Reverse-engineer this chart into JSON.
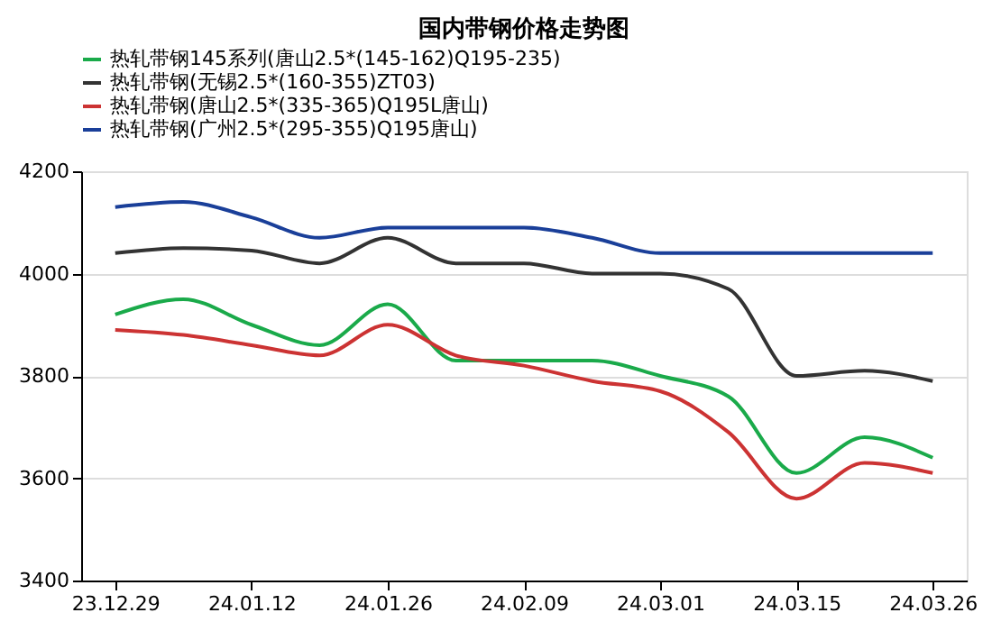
{
  "chart_data": {
    "type": "line",
    "title": "国内带钢价格走势图",
    "categories": [
      "23.12.29",
      null,
      "24.01.12",
      null,
      "24.01.26",
      null,
      "24.02.09",
      null,
      "24.03.01",
      null,
      "24.03.15",
      null,
      "24.03.26"
    ],
    "series": [
      {
        "name": "热轧带钢145系列(唐山2.5*(145-162)Q195-235)",
        "color": "#1aaa4a",
        "values": [
          3920,
          3950,
          3900,
          3860,
          3940,
          3830,
          3830,
          3830,
          3800,
          3760,
          3610,
          3680,
          3640
        ]
      },
      {
        "name": "热轧带钢(无锡2.5*(160-355)ZT03)",
        "color": "#333333",
        "values": [
          4040,
          4050,
          4045,
          4020,
          4070,
          4020,
          4020,
          4000,
          4000,
          3970,
          3800,
          3810,
          3790
        ]
      },
      {
        "name": "热轧带钢(唐山2.5*(335-365)Q195L唐山)",
        "color": "#cc3333",
        "values": [
          3890,
          3880,
          3860,
          3840,
          3900,
          3840,
          3820,
          3790,
          3770,
          3690,
          3560,
          3630,
          3610
        ]
      },
      {
        "name": "热轧带钢(广州2.5*(295-355)Q195唐山)",
        "color": "#1a3f99",
        "values": [
          4130,
          4140,
          4110,
          4070,
          4090,
          4090,
          4090,
          4070,
          4040,
          4040,
          4040,
          4040,
          4040
        ]
      }
    ],
    "ylim": [
      3400,
      4200
    ],
    "yticks": [
      3400,
      3600,
      3800,
      4000,
      4200
    ],
    "grid": "y",
    "legend": "top",
    "marker": "none",
    "line_style": "solid"
  }
}
